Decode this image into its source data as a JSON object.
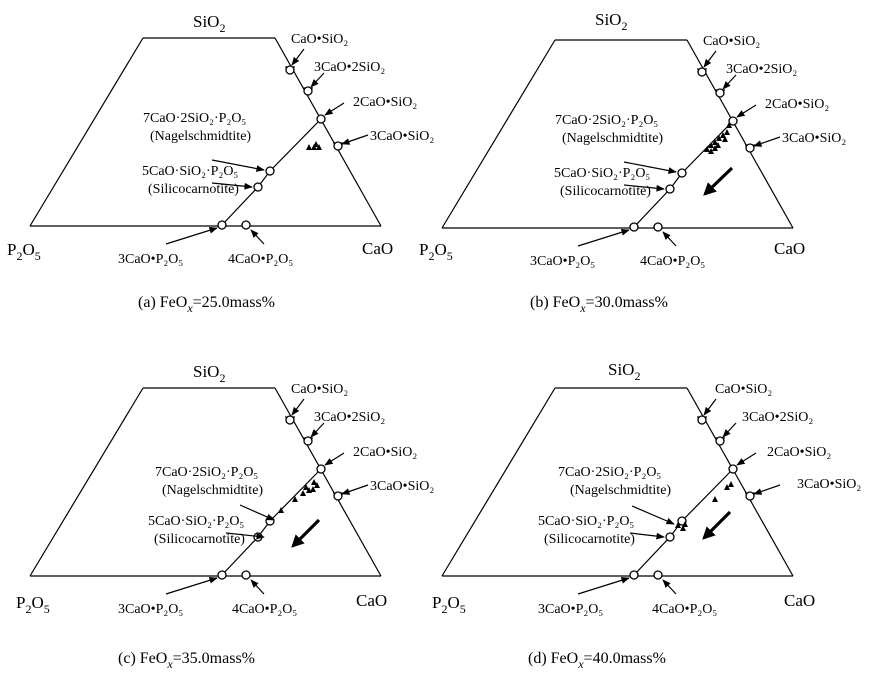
{
  "panels": [
    {
      "caption": {
        "pre": "(",
        "letter": "a",
        "mid": ") FeO",
        "sub": "x",
        "post": "=25.0mass%"
      },
      "big_arrow": false
    },
    {
      "caption": {
        "pre": "(",
        "letter": "b",
        "mid": ") FeO",
        "sub": "x",
        "post": "=30.0mass%"
      },
      "big_arrow": true
    },
    {
      "caption": {
        "pre": "(",
        "letter": "c",
        "mid": ") FeO",
        "sub": "x",
        "post": "=35.0mass%"
      },
      "big_arrow": true
    },
    {
      "caption": {
        "pre": "(",
        "letter": "d",
        "mid": ") FeO",
        "sub": "x",
        "post": "=40.0mass%"
      },
      "big_arrow": true
    }
  ],
  "vertices": {
    "top": {
      "main": "SiO",
      "sub": "2"
    },
    "left": {
      "a": "P",
      "a_sub": "2",
      "b": "O",
      "b_sub": "5"
    },
    "right": {
      "main": "CaO"
    }
  },
  "compounds": {
    "cs": "CaO•SiO₂",
    "c3s2": "3CaO•2SiO₂",
    "c2s": "2CaO•SiO₂",
    "c3s": "3CaO•SiO₂",
    "c7sp_formula": "7CaO·2SiO₂·P₂O₅",
    "c7sp_name": "(Nagelschmidtite)",
    "c5sp_formula": "5CaO·SiO₂·P₂O₅",
    "c5sp_name": "(Silicocarnotite)",
    "c3p": "3CaO•P₂O₅",
    "c4p": "4CaO•P₂O₅"
  }
}
